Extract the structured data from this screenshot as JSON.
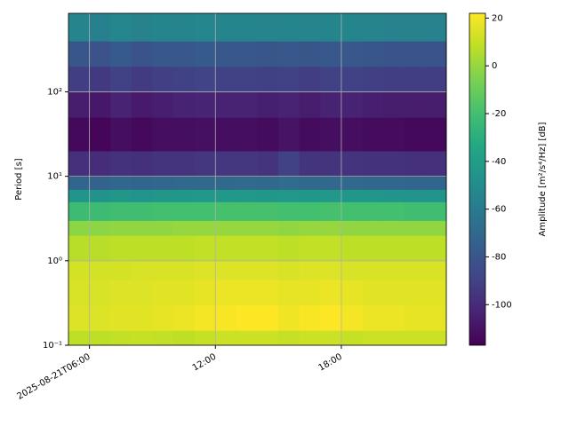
{
  "chart_data": {
    "type": "heatmap",
    "ylabel": "Period [s]",
    "colorbar_label": "Amplitude [m²/s⁴/Hz] [dB]",
    "ylog": true,
    "grid": true,
    "xlim": [
      5,
      23
    ],
    "xticks": [
      {
        "value": 6,
        "label": "2025-08-21T06:00"
      },
      {
        "value": 12,
        "label": "12:00"
      },
      {
        "value": 18,
        "label": "18:00"
      }
    ],
    "ylim": [
      0.1,
      850
    ],
    "yticks": [
      {
        "value": 0.1,
        "label": "10⁻¹"
      },
      {
        "value": 1,
        "label": "10⁰"
      },
      {
        "value": 10,
        "label": "10¹"
      },
      {
        "value": 100,
        "label": "10²"
      }
    ],
    "clim": [
      -117,
      22
    ],
    "cticks": [
      -100,
      -80,
      -60,
      -40,
      -20,
      0,
      20
    ],
    "x_bins": [
      5,
      6,
      7,
      8,
      9,
      10,
      11,
      12,
      13,
      14,
      15,
      16,
      17,
      18,
      19,
      20,
      21,
      22,
      23
    ],
    "y_bins": [
      0.1,
      0.15,
      0.3,
      0.6,
      1,
      2,
      3,
      5,
      7,
      10,
      20,
      50,
      100,
      200,
      400,
      850
    ],
    "z": [
      [
        8,
        8,
        9,
        10,
        9,
        8,
        10,
        11,
        11,
        11,
        10,
        11,
        11,
        10,
        11,
        11,
        11,
        11
      ],
      [
        15,
        15,
        16,
        16,
        17,
        18,
        20,
        21,
        22,
        22,
        19,
        21,
        22,
        20,
        18,
        18,
        17,
        17
      ],
      [
        14,
        14,
        15,
        15,
        16,
        16,
        17,
        18,
        18,
        18,
        17,
        17,
        18,
        17,
        16,
        16,
        16,
        16
      ],
      [
        13,
        13,
        13,
        14,
        14,
        14,
        15,
        15,
        15,
        15,
        14,
        15,
        15,
        14,
        14,
        14,
        14,
        14
      ],
      [
        7,
        7,
        8,
        8,
        8,
        8,
        9,
        9,
        9,
        9,
        8,
        9,
        9,
        8,
        8,
        8,
        8,
        8
      ],
      [
        -2,
        -2,
        -1,
        -1,
        -1,
        0,
        0,
        0,
        0,
        0,
        -1,
        0,
        0,
        -1,
        -1,
        -1,
        -1,
        -1
      ],
      [
        -22,
        -22,
        -21,
        -21,
        -20,
        -20,
        -20,
        -19,
        -19,
        -19,
        -20,
        -20,
        -19,
        -20,
        -20,
        -20,
        -21,
        -21
      ],
      [
        -45,
        -46,
        -44,
        -45,
        -44,
        -44,
        -43,
        -43,
        -43,
        -44,
        -43,
        -44,
        -43,
        -44,
        -44,
        -45,
        -45,
        -45
      ],
      [
        -72,
        -73,
        -71,
        -72,
        -71,
        -70,
        -70,
        -70,
        -69,
        -70,
        -68,
        -70,
        -70,
        -70,
        -71,
        -71,
        -72,
        -72
      ],
      [
        -98,
        -99,
        -97,
        -98,
        -96,
        -96,
        -95,
        -95,
        -95,
        -96,
        -90,
        -96,
        -96,
        -96,
        -97,
        -97,
        -98,
        -98
      ],
      [
        -114,
        -115,
        -112,
        -114,
        -112,
        -112,
        -111,
        -112,
        -112,
        -113,
        -110,
        -113,
        -112,
        -112,
        -113,
        -113,
        -114,
        -114
      ],
      [
        -106,
        -108,
        -104,
        -107,
        -105,
        -104,
        -103,
        -104,
        -104,
        -105,
        -104,
        -106,
        -104,
        -104,
        -105,
        -106,
        -106,
        -106
      ],
      [
        -92,
        -94,
        -90,
        -93,
        -91,
        -90,
        -89,
        -90,
        -90,
        -91,
        -90,
        -92,
        -90,
        -90,
        -91,
        -92,
        -92,
        -92
      ],
      [
        -80,
        -82,
        -78,
        -81,
        -79,
        -79,
        -78,
        -79,
        -79,
        -80,
        -79,
        -80,
        -79,
        -79,
        -80,
        -81,
        -81,
        -81
      ],
      [
        -55,
        -57,
        -53,
        -56,
        -54,
        -54,
        -53,
        -54,
        -54,
        -55,
        -54,
        -55,
        -54,
        -54,
        -55,
        -56,
        -56,
        -56
      ]
    ]
  }
}
